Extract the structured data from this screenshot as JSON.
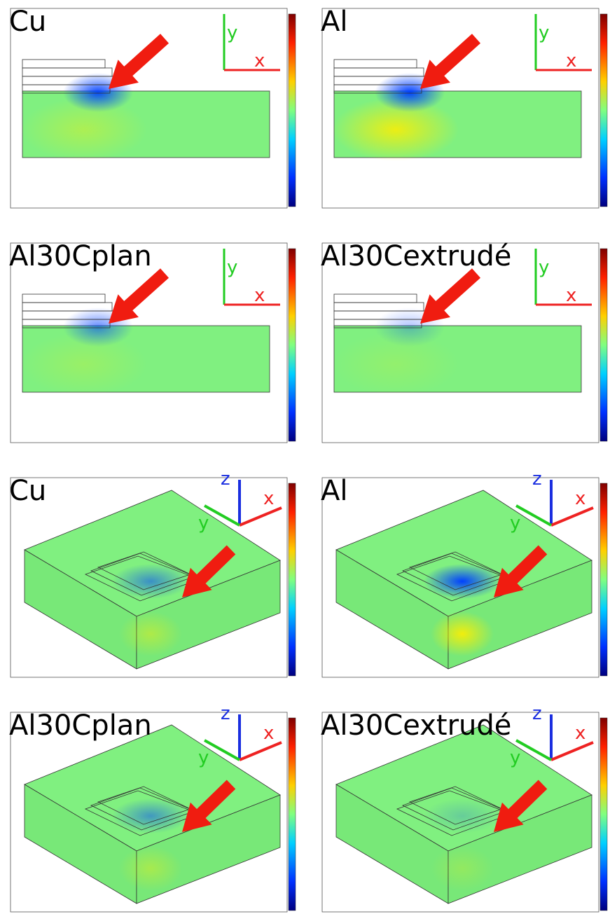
{
  "panels": [
    {
      "label": "Cu",
      "axes": [
        "y",
        "x"
      ]
    },
    {
      "label": "Al",
      "axes": [
        "y",
        "x"
      ]
    },
    {
      "label": "Al30Cplan",
      "axes": [
        "y",
        "x"
      ]
    },
    {
      "label": "Al30Cextrudé",
      "axes": [
        "y",
        "x"
      ]
    },
    {
      "label": "Cu",
      "axes": [
        "z",
        "x",
        "y"
      ]
    },
    {
      "label": "Al",
      "axes": [
        "z",
        "x",
        "y"
      ]
    },
    {
      "label": "Al30Cplan",
      "axes": [
        "z",
        "x",
        "y"
      ]
    },
    {
      "label": "Al30Cextrudé",
      "axes": [
        "z",
        "x",
        "y"
      ]
    }
  ]
}
